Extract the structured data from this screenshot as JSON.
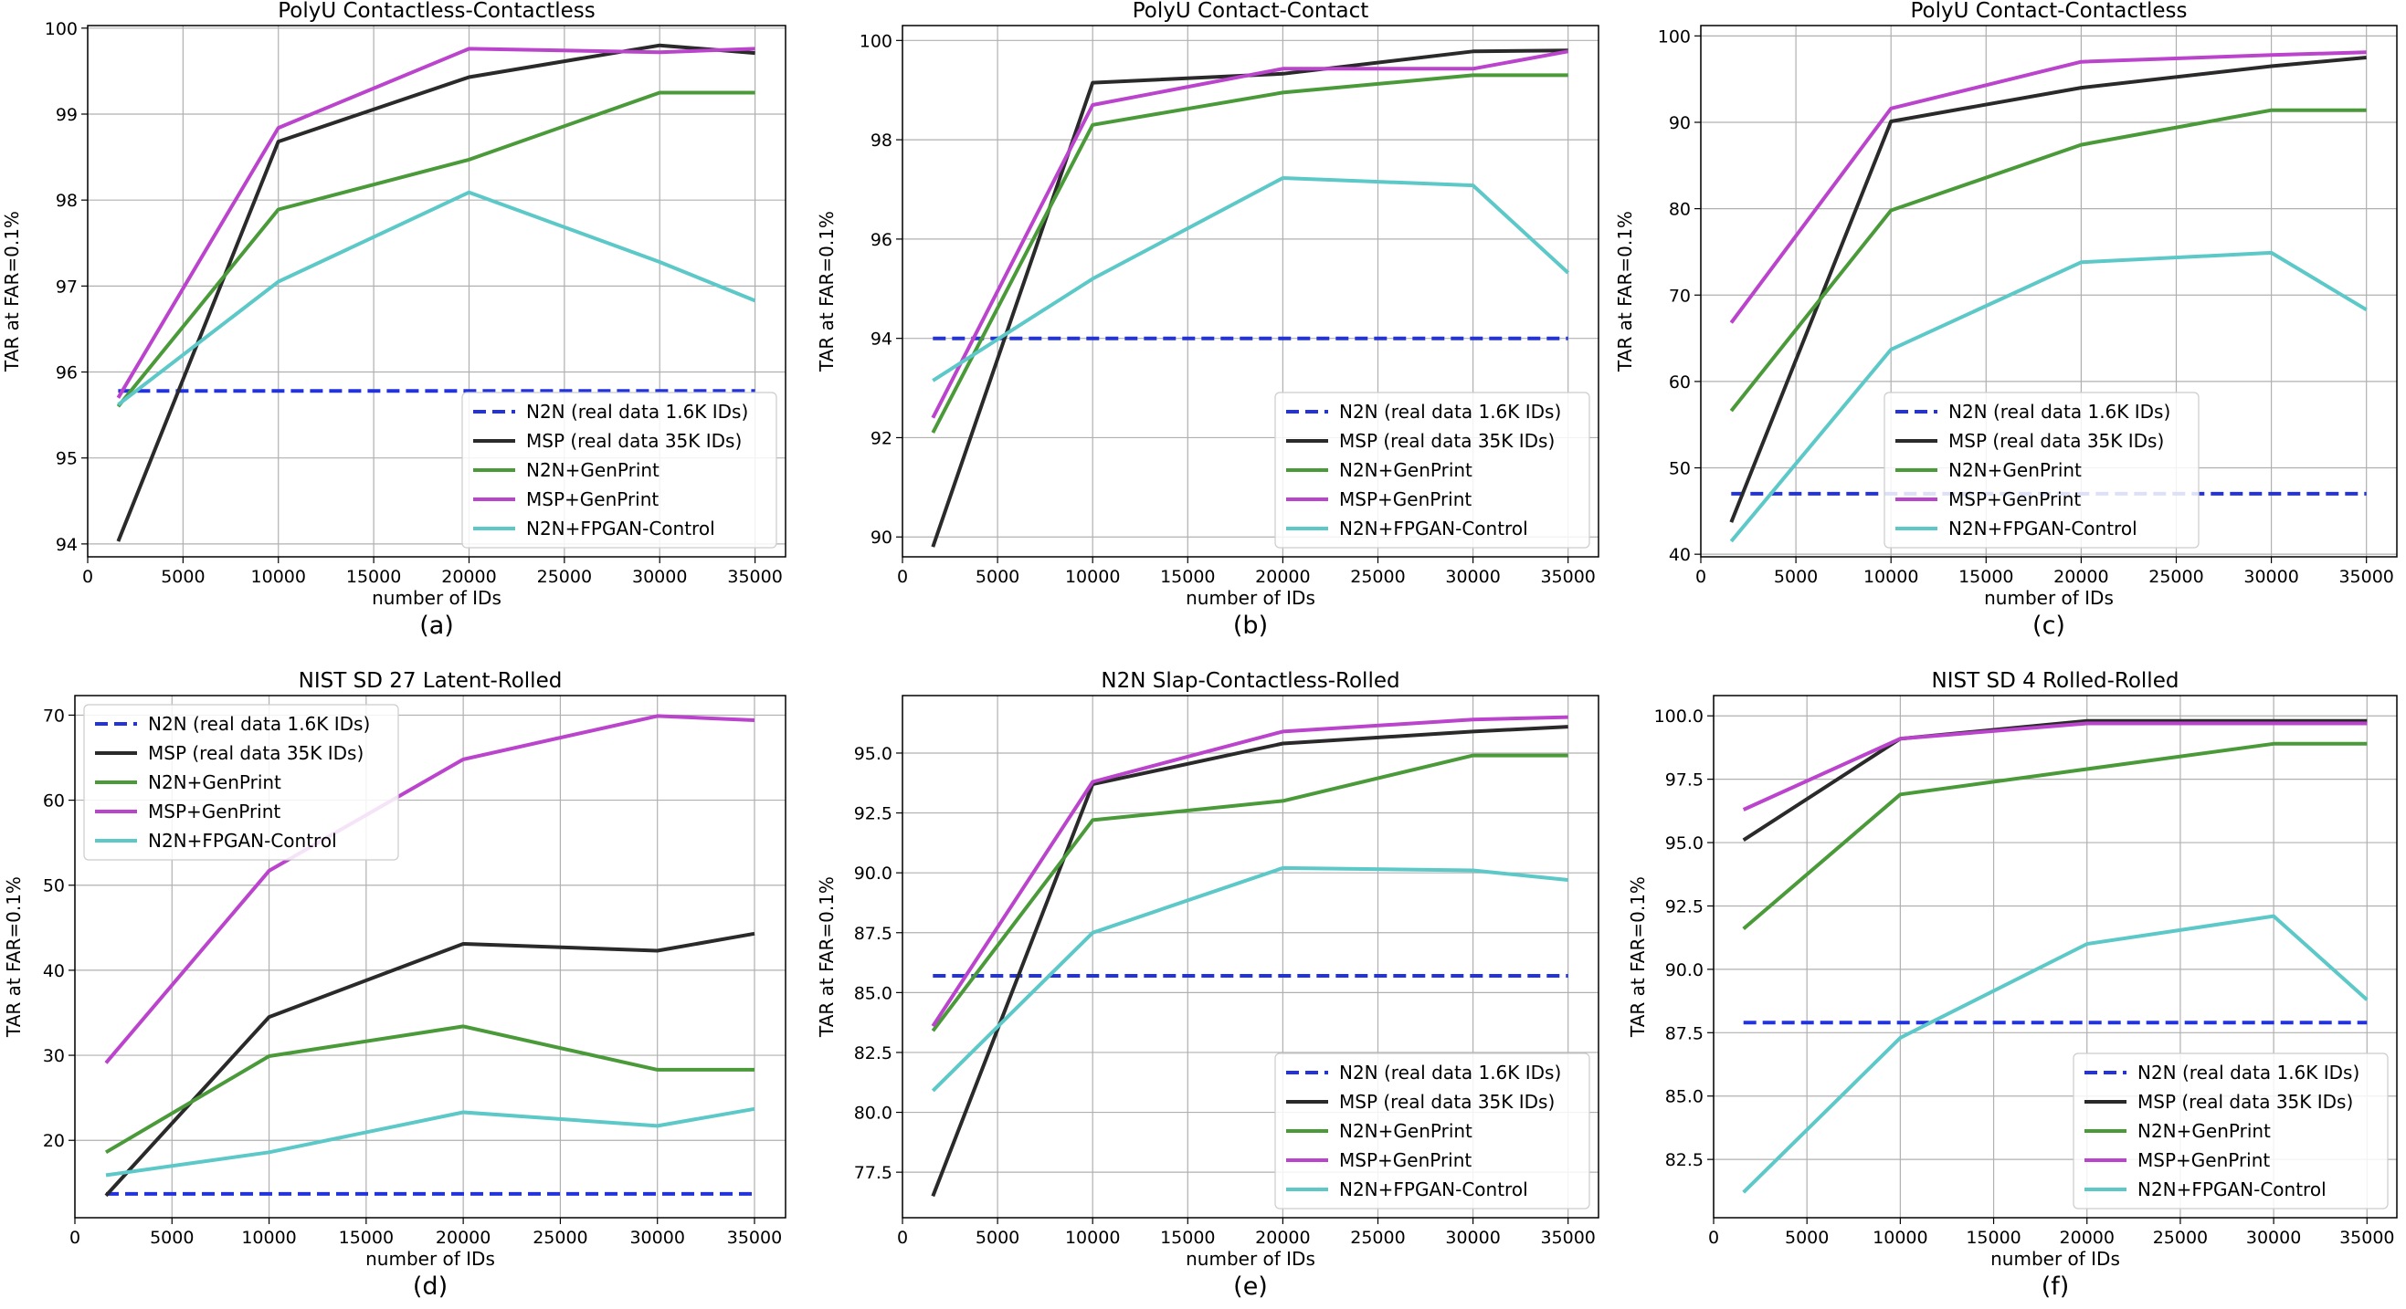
{
  "chart_data": [
    {
      "type": "line",
      "panel": "(a)",
      "title": "PolyU Contactless-Contactless",
      "xlabel": "number of IDs",
      "ylabel": "TAR at FAR=0.1%",
      "xlim": [
        0,
        36600
      ],
      "ylim": [
        93.85,
        100.03
      ],
      "xticks": [
        0,
        5000,
        10000,
        15000,
        20000,
        25000,
        30000,
        35000
      ],
      "xtick_labels": [
        "0",
        "5000",
        "10000",
        "15000",
        "20000",
        "25000",
        "30000",
        "35000"
      ],
      "yticks": [
        94,
        95,
        96,
        97,
        98,
        99,
        100
      ],
      "ytick_labels": [
        "94",
        "95",
        "96",
        "97",
        "98",
        "99",
        "100"
      ],
      "grid": true,
      "legend_position": "lower-right",
      "series": [
        {
          "name": "N2N (real data 1.6K IDs)",
          "color": "#2233dd",
          "style": "dashed",
          "x": [
            1600,
            35000
          ],
          "y": [
            95.78,
            95.78
          ]
        },
        {
          "name": "MSP (real data 35K IDs)",
          "color": "#2a2a2a",
          "style": "solid",
          "x": [
            1600,
            10000,
            20000,
            30000,
            35000
          ],
          "y": [
            94.03,
            98.68,
            99.43,
            99.8,
            99.71
          ]
        },
        {
          "name": "N2N+GenPrint",
          "color": "#4a9a3a",
          "style": "solid",
          "x": [
            1600,
            10000,
            20000,
            30000,
            35000
          ],
          "y": [
            95.6,
            97.89,
            98.47,
            99.25,
            99.25
          ]
        },
        {
          "name": "MSP+GenPrint",
          "color": "#bb44cc",
          "style": "solid",
          "x": [
            1600,
            10000,
            20000,
            30000,
            35000
          ],
          "y": [
            95.7,
            98.84,
            99.76,
            99.72,
            99.76
          ]
        },
        {
          "name": "N2N+FPGAN-Control",
          "color": "#5cc8c8",
          "style": "solid",
          "x": [
            1600,
            10000,
            20000,
            30000,
            35000
          ],
          "y": [
            95.62,
            97.05,
            98.09,
            97.28,
            96.83
          ]
        }
      ]
    },
    {
      "type": "line",
      "panel": "(b)",
      "title": "PolyU Contact-Contact",
      "xlabel": "number of IDs",
      "ylabel": "TAR at FAR=0.1%",
      "xlim": [
        0,
        36600
      ],
      "ylim": [
        89.6,
        100.3
      ],
      "xticks": [
        0,
        5000,
        10000,
        15000,
        20000,
        25000,
        30000,
        35000
      ],
      "xtick_labels": [
        "0",
        "5000",
        "10000",
        "15000",
        "20000",
        "25000",
        "30000",
        "35000"
      ],
      "yticks": [
        90,
        92,
        94,
        96,
        98,
        100
      ],
      "ytick_labels": [
        "90",
        "92",
        "94",
        "96",
        "98",
        "100"
      ],
      "grid": true,
      "legend_position": "lower-right",
      "series": [
        {
          "name": "N2N (real data 1.6K IDs)",
          "color": "#2233dd",
          "style": "dashed",
          "x": [
            1600,
            35000
          ],
          "y": [
            94.0,
            94.0
          ]
        },
        {
          "name": "MSP (real data 35K IDs)",
          "color": "#2a2a2a",
          "style": "solid",
          "x": [
            1600,
            10000,
            20000,
            30000,
            35000
          ],
          "y": [
            89.8,
            99.15,
            99.33,
            99.78,
            99.8
          ]
        },
        {
          "name": "N2N+GenPrint",
          "color": "#4a9a3a",
          "style": "solid",
          "x": [
            1600,
            10000,
            20000,
            30000,
            35000
          ],
          "y": [
            92.1,
            98.3,
            98.95,
            99.3,
            99.3
          ]
        },
        {
          "name": "MSP+GenPrint",
          "color": "#bb44cc",
          "style": "solid",
          "x": [
            1600,
            10000,
            20000,
            30000,
            35000
          ],
          "y": [
            92.4,
            98.7,
            99.43,
            99.43,
            99.78
          ]
        },
        {
          "name": "N2N+FPGAN-Control",
          "color": "#5cc8c8",
          "style": "solid",
          "x": [
            1600,
            10000,
            20000,
            30000,
            35000
          ],
          "y": [
            93.15,
            95.2,
            97.23,
            97.08,
            95.32
          ]
        }
      ]
    },
    {
      "type": "line",
      "panel": "(c)",
      "title": "PolyU Contact-Contactless",
      "xlabel": "number of IDs",
      "ylabel": "TAR at FAR=0.1%",
      "xlim": [
        0,
        36600
      ],
      "ylim": [
        39.7,
        101.2
      ],
      "xticks": [
        0,
        5000,
        10000,
        15000,
        20000,
        25000,
        30000,
        35000
      ],
      "xtick_labels": [
        "0",
        "5000",
        "10000",
        "15000",
        "20000",
        "25000",
        "30000",
        "35000"
      ],
      "yticks": [
        40,
        50,
        60,
        70,
        80,
        90,
        100
      ],
      "ytick_labels": [
        "40",
        "50",
        "60",
        "70",
        "80",
        "90",
        "100"
      ],
      "grid": true,
      "legend_position": "lower-center",
      "series": [
        {
          "name": "N2N (real data 1.6K IDs)",
          "color": "#2233dd",
          "style": "dashed",
          "x": [
            1600,
            35000
          ],
          "y": [
            47.0,
            47.0
          ]
        },
        {
          "name": "MSP (real data 35K IDs)",
          "color": "#2a2a2a",
          "style": "solid",
          "x": [
            1600,
            10000,
            20000,
            30000,
            35000
          ],
          "y": [
            43.7,
            90.1,
            94.0,
            96.5,
            97.5
          ]
        },
        {
          "name": "N2N+GenPrint",
          "color": "#4a9a3a",
          "style": "solid",
          "x": [
            1600,
            10000,
            20000,
            30000,
            35000
          ],
          "y": [
            56.6,
            79.8,
            87.4,
            91.4,
            91.4
          ]
        },
        {
          "name": "MSP+GenPrint",
          "color": "#bb44cc",
          "style": "solid",
          "x": [
            1600,
            10000,
            20000,
            30000,
            35000
          ],
          "y": [
            66.8,
            91.6,
            97.0,
            97.8,
            98.1
          ]
        },
        {
          "name": "N2N+FPGAN-Control",
          "color": "#5cc8c8",
          "style": "solid",
          "x": [
            1600,
            10000,
            20000,
            30000,
            35000
          ],
          "y": [
            41.5,
            63.7,
            73.8,
            74.9,
            68.3
          ]
        }
      ]
    },
    {
      "type": "line",
      "panel": "(d)",
      "title": "NIST SD 27 Latent-Rolled",
      "xlabel": "number of IDs",
      "ylabel": "TAR at FAR=0.1%",
      "xlim": [
        0,
        36600
      ],
      "ylim": [
        10.9,
        72.3
      ],
      "xticks": [
        0,
        5000,
        10000,
        15000,
        20000,
        25000,
        30000,
        35000
      ],
      "xtick_labels": [
        "0",
        "5000",
        "10000",
        "15000",
        "20000",
        "25000",
        "30000",
        "35000"
      ],
      "yticks": [
        20,
        30,
        40,
        50,
        60,
        70
      ],
      "ytick_labels": [
        "20",
        "30",
        "40",
        "50",
        "60",
        "70"
      ],
      "grid": true,
      "legend_position": "upper-left",
      "series": [
        {
          "name": "N2N (real data 1.6K IDs)",
          "color": "#2233dd",
          "style": "dashed",
          "x": [
            1600,
            35000
          ],
          "y": [
            13.7,
            13.7
          ]
        },
        {
          "name": "MSP (real data 35K IDs)",
          "color": "#2a2a2a",
          "style": "solid",
          "x": [
            1600,
            10000,
            20000,
            30000,
            35000
          ],
          "y": [
            13.5,
            34.5,
            43.1,
            42.3,
            44.3
          ]
        },
        {
          "name": "N2N+GenPrint",
          "color": "#4a9a3a",
          "style": "solid",
          "x": [
            1600,
            10000,
            20000,
            30000,
            35000
          ],
          "y": [
            18.6,
            29.9,
            33.4,
            28.3,
            28.3
          ]
        },
        {
          "name": "MSP+GenPrint",
          "color": "#bb44cc",
          "style": "solid",
          "x": [
            1600,
            10000,
            20000,
            30000,
            35000
          ],
          "y": [
            29.1,
            51.7,
            64.8,
            69.9,
            69.4
          ]
        },
        {
          "name": "N2N+FPGAN-Control",
          "color": "#5cc8c8",
          "style": "solid",
          "x": [
            1600,
            10000,
            20000,
            30000,
            35000
          ],
          "y": [
            15.9,
            18.6,
            23.3,
            21.7,
            23.7
          ]
        }
      ]
    },
    {
      "type": "line",
      "panel": "(e)",
      "title": "N2N Slap-Contactless-Rolled",
      "xlabel": "number of IDs",
      "ylabel": "TAR at FAR=0.1%",
      "xlim": [
        0,
        36600
      ],
      "ylim": [
        75.6,
        97.4
      ],
      "xticks": [
        0,
        5000,
        10000,
        15000,
        20000,
        25000,
        30000,
        35000
      ],
      "xtick_labels": [
        "0",
        "5000",
        "10000",
        "15000",
        "20000",
        "25000",
        "30000",
        "35000"
      ],
      "yticks": [
        77.5,
        80.0,
        82.5,
        85.0,
        87.5,
        90.0,
        92.5,
        95.0
      ],
      "ytick_labels": [
        "77.5",
        "80.0",
        "82.5",
        "85.0",
        "87.5",
        "90.0",
        "92.5",
        "95.0"
      ],
      "grid": true,
      "legend_position": "lower-right",
      "series": [
        {
          "name": "N2N (real data 1.6K IDs)",
          "color": "#2233dd",
          "style": "dashed",
          "x": [
            1600,
            35000
          ],
          "y": [
            85.7,
            85.7
          ]
        },
        {
          "name": "MSP (real data 35K IDs)",
          "color": "#2a2a2a",
          "style": "solid",
          "x": [
            1600,
            10000,
            20000,
            30000,
            35000
          ],
          "y": [
            76.5,
            93.7,
            95.4,
            95.9,
            96.1
          ]
        },
        {
          "name": "N2N+GenPrint",
          "color": "#4a9a3a",
          "style": "solid",
          "x": [
            1600,
            10000,
            20000,
            30000,
            35000
          ],
          "y": [
            83.4,
            92.2,
            93.0,
            94.9,
            94.9
          ]
        },
        {
          "name": "MSP+GenPrint",
          "color": "#bb44cc",
          "style": "solid",
          "x": [
            1600,
            10000,
            20000,
            30000,
            35000
          ],
          "y": [
            83.6,
            93.8,
            95.9,
            96.4,
            96.5
          ]
        },
        {
          "name": "N2N+FPGAN-Control",
          "color": "#5cc8c8",
          "style": "solid",
          "x": [
            1600,
            10000,
            20000,
            30000,
            35000
          ],
          "y": [
            80.9,
            87.5,
            90.2,
            90.1,
            89.7
          ]
        }
      ]
    },
    {
      "type": "line",
      "panel": "(f)",
      "title": "NIST SD 4 Rolled-Rolled",
      "xlabel": "number of IDs",
      "ylabel": "TAR at FAR=0.1%",
      "xlim": [
        0,
        36600
      ],
      "ylim": [
        80.2,
        100.8
      ],
      "xticks": [
        0,
        5000,
        10000,
        15000,
        20000,
        25000,
        30000,
        35000
      ],
      "xtick_labels": [
        "0",
        "5000",
        "10000",
        "15000",
        "20000",
        "25000",
        "30000",
        "35000"
      ],
      "yticks": [
        82.5,
        85.0,
        87.5,
        90.0,
        92.5,
        95.0,
        97.5,
        100.0
      ],
      "ytick_labels": [
        "82.5",
        "85.0",
        "87.5",
        "90.0",
        "92.5",
        "95.0",
        "97.5",
        "100.0"
      ],
      "grid": true,
      "legend_position": "lower-right",
      "series": [
        {
          "name": "N2N (real data 1.6K IDs)",
          "color": "#2233dd",
          "style": "dashed",
          "x": [
            1600,
            35000
          ],
          "y": [
            87.9,
            87.9
          ]
        },
        {
          "name": "MSP (real data 35K IDs)",
          "color": "#2a2a2a",
          "style": "solid",
          "x": [
            1600,
            10000,
            20000,
            30000,
            35000
          ],
          "y": [
            95.1,
            99.1,
            99.8,
            99.8,
            99.8
          ]
        },
        {
          "name": "N2N+GenPrint",
          "color": "#4a9a3a",
          "style": "solid",
          "x": [
            1600,
            10000,
            20000,
            30000,
            35000
          ],
          "y": [
            91.6,
            96.9,
            97.9,
            98.9,
            98.9
          ]
        },
        {
          "name": "MSP+GenPrint",
          "color": "#bb44cc",
          "style": "solid",
          "x": [
            1600,
            10000,
            20000,
            30000,
            35000
          ],
          "y": [
            96.3,
            99.1,
            99.7,
            99.7,
            99.7
          ]
        },
        {
          "name": "N2N+FPGAN-Control",
          "color": "#5cc8c8",
          "style": "solid",
          "x": [
            1600,
            10000,
            20000,
            30000,
            35000
          ],
          "y": [
            81.2,
            87.3,
            91.0,
            92.1,
            88.8
          ]
        }
      ]
    }
  ]
}
